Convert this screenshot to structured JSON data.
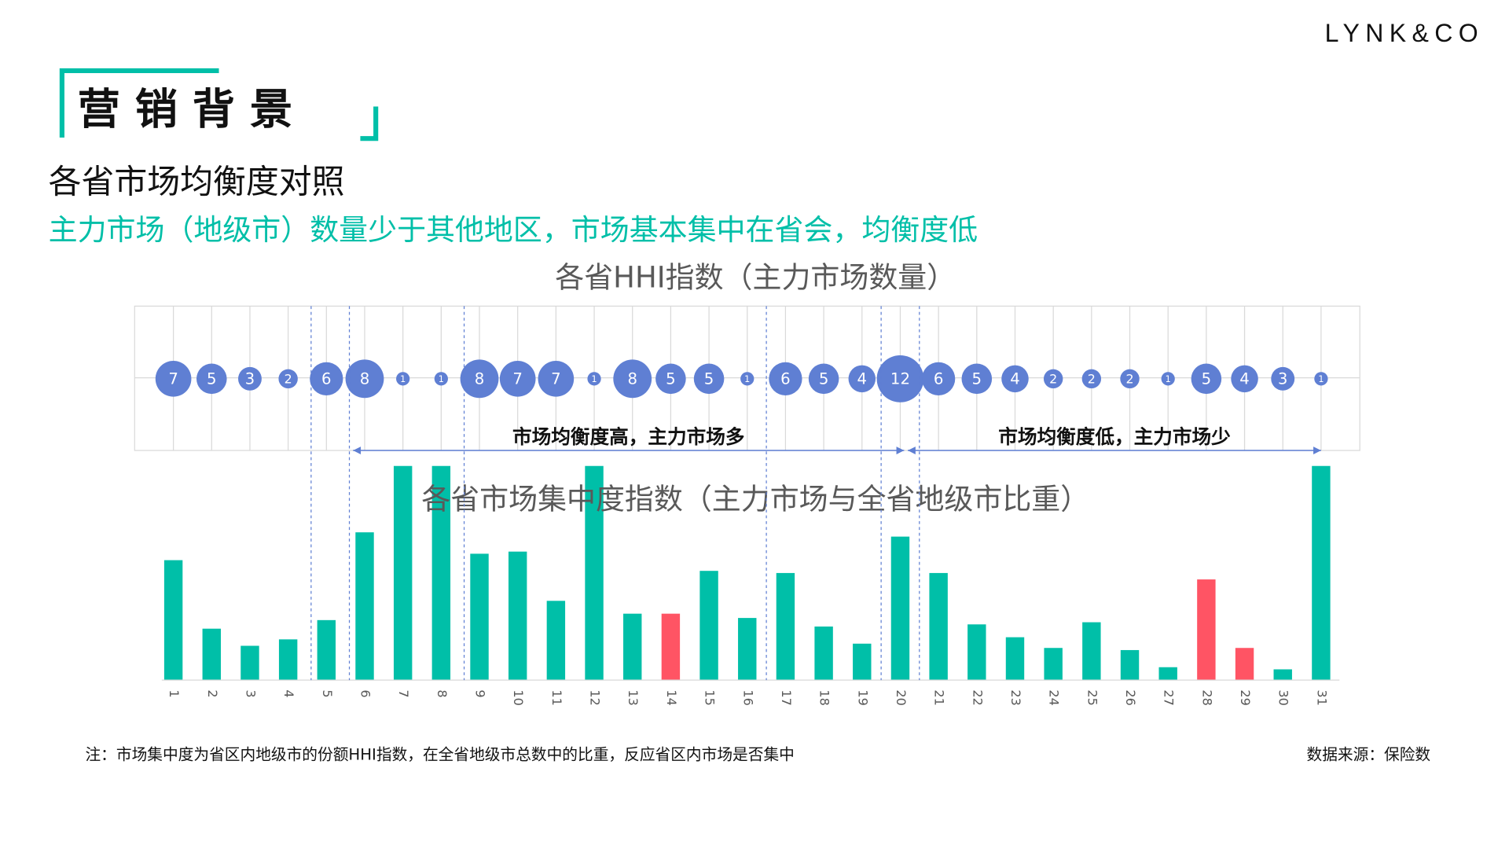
{
  "slide": {
    "logo": "LYNK&CO",
    "title": "营 销 背 景",
    "subtitle": "各省市场均衡度对照",
    "highlight": "主力市场（地级市）数量少于其他地区，市场基本集中在省会，均衡度低",
    "note": "注：市场集中度为省区内地级市的份额HHI指数，在全省地级市总数中的比重，反应省区内市场是否集中",
    "source": "数据来源：保险数"
  },
  "chart_data": [
    {
      "type": "bubble",
      "title": "各省HHI指数（主力市场数量）",
      "color": "#5f7fd3",
      "values": [
        7,
        5,
        3,
        2,
        6,
        8,
        1,
        1,
        8,
        7,
        7,
        1,
        8,
        5,
        5,
        1,
        6,
        5,
        4,
        12,
        6,
        5,
        4,
        2,
        2,
        2,
        1,
        5,
        4,
        3,
        1
      ],
      "annotations": [
        "市场均衡度高，主力市场多",
        "市场均衡度低，主力市场少"
      ]
    },
    {
      "type": "bar",
      "title": "各省市场集中度指数（主力市场与全省地级市比重）",
      "categories": [
        "1",
        "2",
        "3",
        "4",
        "5",
        "6",
        "7",
        "8",
        "9",
        "10",
        "11",
        "12",
        "13",
        "14",
        "15",
        "16",
        "17",
        "18",
        "19",
        "20",
        "21",
        "22",
        "23",
        "24",
        "25",
        "26",
        "27",
        "28",
        "29",
        "30",
        "31"
      ],
      "values": [
        56,
        24,
        16,
        19,
        28,
        69,
        100,
        100,
        59,
        60,
        37,
        100,
        31,
        31,
        51,
        29,
        50,
        25,
        17,
        67,
        50,
        26,
        20,
        15,
        27,
        14,
        6,
        47,
        15,
        5,
        100
      ],
      "colors": [
        "#00bfa8",
        "#00bfa8",
        "#00bfa8",
        "#00bfa8",
        "#00bfa8",
        "#00bfa8",
        "#00bfa8",
        "#00bfa8",
        "#00bfa8",
        "#00bfa8",
        "#00bfa8",
        "#00bfa8",
        "#00bfa8",
        "#ff5464",
        "#00bfa8",
        "#00bfa8",
        "#00bfa8",
        "#00bfa8",
        "#00bfa8",
        "#00bfa8",
        "#00bfa8",
        "#00bfa8",
        "#00bfa8",
        "#00bfa8",
        "#00bfa8",
        "#00bfa8",
        "#00bfa8",
        "#ff5464",
        "#ff5464",
        "#00bfa8",
        "#00bfa8"
      ]
    }
  ]
}
